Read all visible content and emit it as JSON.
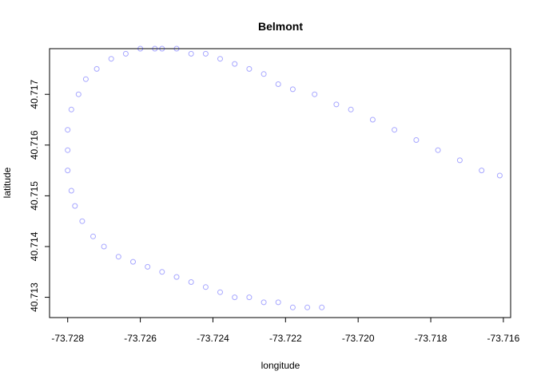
{
  "chart_data": {
    "type": "scatter",
    "title": "Belmont",
    "xlabel": "longitude",
    "ylabel": "latitude",
    "xlim": [
      -73.7285,
      -73.7158
    ],
    "ylim": [
      40.7126,
      40.7179
    ],
    "xticks": [
      -73.728,
      -73.726,
      -73.724,
      -73.722,
      -73.72,
      -73.718,
      -73.716
    ],
    "xtick_labels": [
      "-73.728",
      "-73.726",
      "-73.724",
      "-73.722",
      "-73.720",
      "-73.718",
      "-73.716"
    ],
    "yticks": [
      40.713,
      40.714,
      40.715,
      40.716,
      40.717
    ],
    "ytick_labels": [
      "40.713",
      "40.714",
      "40.715",
      "40.716",
      "40.717"
    ],
    "grid": false,
    "marker": "open-circle",
    "color": "#0000FF",
    "series": [
      {
        "points": [
          [
            -73.7161,
            40.7154
          ],
          [
            -73.7166,
            40.7155
          ],
          [
            -73.7172,
            40.7157
          ],
          [
            -73.7178,
            40.7159
          ],
          [
            -73.7184,
            40.7161
          ],
          [
            -73.719,
            40.7163
          ],
          [
            -73.7196,
            40.7165
          ],
          [
            -73.7202,
            40.7167
          ],
          [
            -73.7206,
            40.7168
          ],
          [
            -73.7212,
            40.717
          ],
          [
            -73.7218,
            40.7171
          ],
          [
            -73.7222,
            40.7172
          ],
          [
            -73.7226,
            40.7174
          ],
          [
            -73.723,
            40.7175
          ],
          [
            -73.7234,
            40.7176
          ],
          [
            -73.7238,
            40.7177
          ],
          [
            -73.7242,
            40.7178
          ],
          [
            -73.7246,
            40.7178
          ],
          [
            -73.725,
            40.7179
          ],
          [
            -73.7254,
            40.7179
          ],
          [
            -73.7256,
            40.7179
          ],
          [
            -73.726,
            40.7179
          ],
          [
            -73.7264,
            40.7178
          ],
          [
            -73.7268,
            40.7177
          ],
          [
            -73.7272,
            40.7175
          ],
          [
            -73.7275,
            40.7173
          ],
          [
            -73.7277,
            40.717
          ],
          [
            -73.7279,
            40.7167
          ],
          [
            -73.728,
            40.7163
          ],
          [
            -73.728,
            40.7159
          ],
          [
            -73.728,
            40.7155
          ],
          [
            -73.7279,
            40.7151
          ],
          [
            -73.7278,
            40.7148
          ],
          [
            -73.7276,
            40.7145
          ],
          [
            -73.7273,
            40.7142
          ],
          [
            -73.727,
            40.714
          ],
          [
            -73.7266,
            40.7138
          ],
          [
            -73.7262,
            40.7137
          ],
          [
            -73.7258,
            40.7136
          ],
          [
            -73.7254,
            40.7135
          ],
          [
            -73.725,
            40.7134
          ],
          [
            -73.7246,
            40.7133
          ],
          [
            -73.7242,
            40.7132
          ],
          [
            -73.7238,
            40.7131
          ],
          [
            -73.7234,
            40.713
          ],
          [
            -73.723,
            40.713
          ],
          [
            -73.7226,
            40.7129
          ],
          [
            -73.7222,
            40.7129
          ],
          [
            -73.7218,
            40.7128
          ],
          [
            -73.7214,
            40.7128
          ],
          [
            -73.721,
            40.7128
          ]
        ]
      }
    ]
  }
}
